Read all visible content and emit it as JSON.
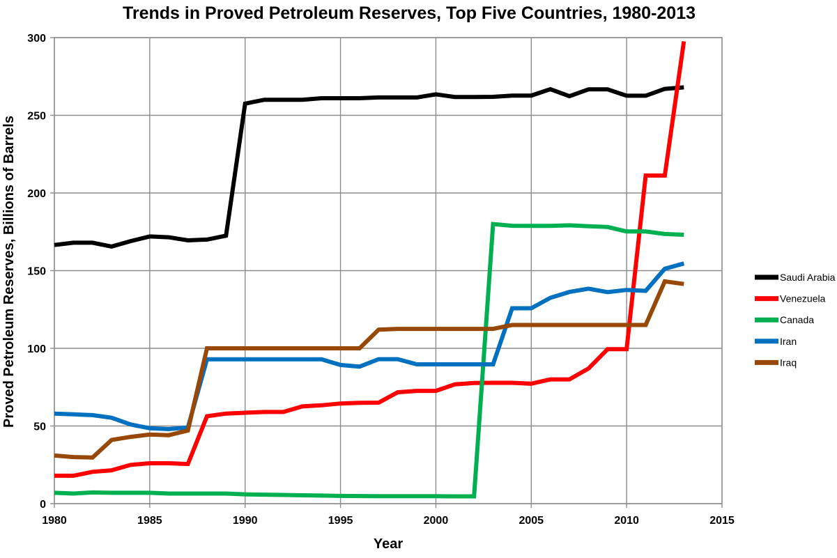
{
  "chart_data": {
    "type": "line",
    "title": "Trends in Proved Petroleum Reserves, Top Five Countries, 1980-2013",
    "xlabel": "Year",
    "ylabel": "Proved Petroleum Reserves, Billions of Barrels",
    "xlim": [
      1980,
      2015
    ],
    "ylim": [
      0,
      300
    ],
    "xticks": [
      1980,
      1985,
      1990,
      1995,
      2000,
      2005,
      2010,
      2015
    ],
    "yticks": [
      0,
      50,
      100,
      150,
      200,
      250,
      300
    ],
    "grid": true,
    "legend_position": "right",
    "x": [
      1980,
      1981,
      1982,
      1983,
      1984,
      1985,
      1986,
      1987,
      1988,
      1989,
      1990,
      1991,
      1992,
      1993,
      1994,
      1995,
      1996,
      1997,
      1998,
      1999,
      2000,
      2001,
      2002,
      2003,
      2004,
      2005,
      2006,
      2007,
      2008,
      2009,
      2010,
      2011,
      2012,
      2013
    ],
    "series": [
      {
        "name": "Saudi Arabia",
        "color": "#000000",
        "values": [
          166.5,
          168,
          168,
          165.5,
          169,
          172,
          171.5,
          169.5,
          170,
          172.5,
          257.5,
          260,
          260,
          260,
          261,
          261,
          261,
          261.5,
          261.5,
          261.5,
          263.5,
          261.8,
          261.8,
          261.9,
          262.7,
          262.7,
          266.8,
          262.3,
          266.7,
          266.7,
          262.6,
          262.6,
          267,
          268
        ]
      },
      {
        "name": "Venezuela",
        "color": "#ff0000",
        "values": [
          18,
          18,
          20.5,
          21.5,
          25,
          26,
          26,
          25.5,
          56.3,
          58,
          58.5,
          59,
          59,
          62.6,
          63.3,
          64.5,
          64.9,
          65,
          71.7,
          72.6,
          72.6,
          76.8,
          77.7,
          77.8,
          77.8,
          77.2,
          80,
          80,
          87,
          99.4,
          99.4,
          211.2,
          211.2,
          297.6
        ]
      },
      {
        "name": "Canada",
        "color": "#00b050",
        "values": [
          7,
          6.5,
          7.2,
          7,
          7,
          7,
          6.5,
          6.5,
          6.5,
          6.5,
          6,
          5.8,
          5.6,
          5.4,
          5.2,
          5,
          4.9,
          4.8,
          4.8,
          4.8,
          4.8,
          4.7,
          4.7,
          180,
          178.9,
          178.8,
          178.8,
          179.2,
          178.6,
          178.1,
          175.2,
          175.2,
          173.6,
          173.1
        ]
      },
      {
        "name": "Iran",
        "color": "#0070c0",
        "values": [
          58,
          57.5,
          57,
          55.3,
          51,
          48.5,
          48,
          49,
          92.9,
          92.9,
          92.9,
          92.9,
          92.9,
          92.9,
          92.9,
          89.3,
          88.2,
          93,
          93,
          89.7,
          89.7,
          89.7,
          89.7,
          89.7,
          125.8,
          125.8,
          132.5,
          136.3,
          138.4,
          136.2,
          137.6,
          137,
          151.2,
          154.6
        ]
      },
      {
        "name": "Iraq",
        "color": "#974706",
        "values": [
          31,
          30,
          29.7,
          41,
          43,
          44.5,
          44.1,
          47.1,
          100,
          100,
          100,
          100,
          100,
          100,
          100,
          100,
          100,
          112,
          112.5,
          112.5,
          112.5,
          112.5,
          112.5,
          112.5,
          115,
          115,
          115,
          115,
          115,
          115,
          115,
          115,
          143.1,
          141.4
        ]
      }
    ]
  }
}
